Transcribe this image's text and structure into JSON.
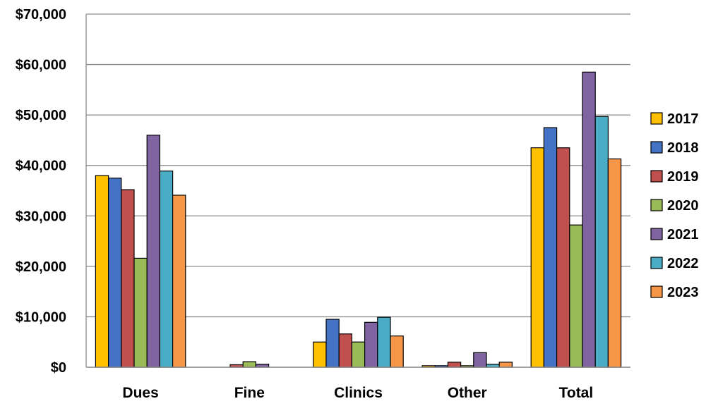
{
  "chart_data": {
    "type": "bar",
    "title": "",
    "xlabel": "",
    "ylabel": "",
    "categories": [
      "Dues",
      "Fine",
      "Clinics",
      "Other",
      "Total"
    ],
    "ylim": [
      0,
      70000
    ],
    "yticks": [
      0,
      10000,
      20000,
      30000,
      40000,
      50000,
      60000,
      70000
    ],
    "ytick_labels": [
      "$0",
      "$10,000",
      "$20,000",
      "$30,000",
      "$40,000",
      "$50,000",
      "$60,000",
      "$70,000"
    ],
    "grid": true,
    "legend_position": "right",
    "series": [
      {
        "name": "2017",
        "color": "#FFC000",
        "values": [
          38000,
          0,
          5000,
          300,
          43500
        ]
      },
      {
        "name": "2018",
        "color": "#4472C4",
        "values": [
          37500,
          0,
          9500,
          300,
          47500
        ]
      },
      {
        "name": "2019",
        "color": "#C0504D",
        "values": [
          35200,
          500,
          6600,
          1000,
          43500
        ]
      },
      {
        "name": "2020",
        "color": "#9BBB59",
        "values": [
          21600,
          1100,
          5000,
          300,
          28200
        ]
      },
      {
        "name": "2021",
        "color": "#8064A2",
        "values": [
          46000,
          600,
          8900,
          2900,
          58500
        ]
      },
      {
        "name": "2022",
        "color": "#4BACC6",
        "values": [
          38900,
          0,
          9900,
          600,
          49700
        ]
      },
      {
        "name": "2023",
        "color": "#F79646",
        "values": [
          34100,
          0,
          6200,
          1000,
          41300
        ]
      }
    ]
  }
}
